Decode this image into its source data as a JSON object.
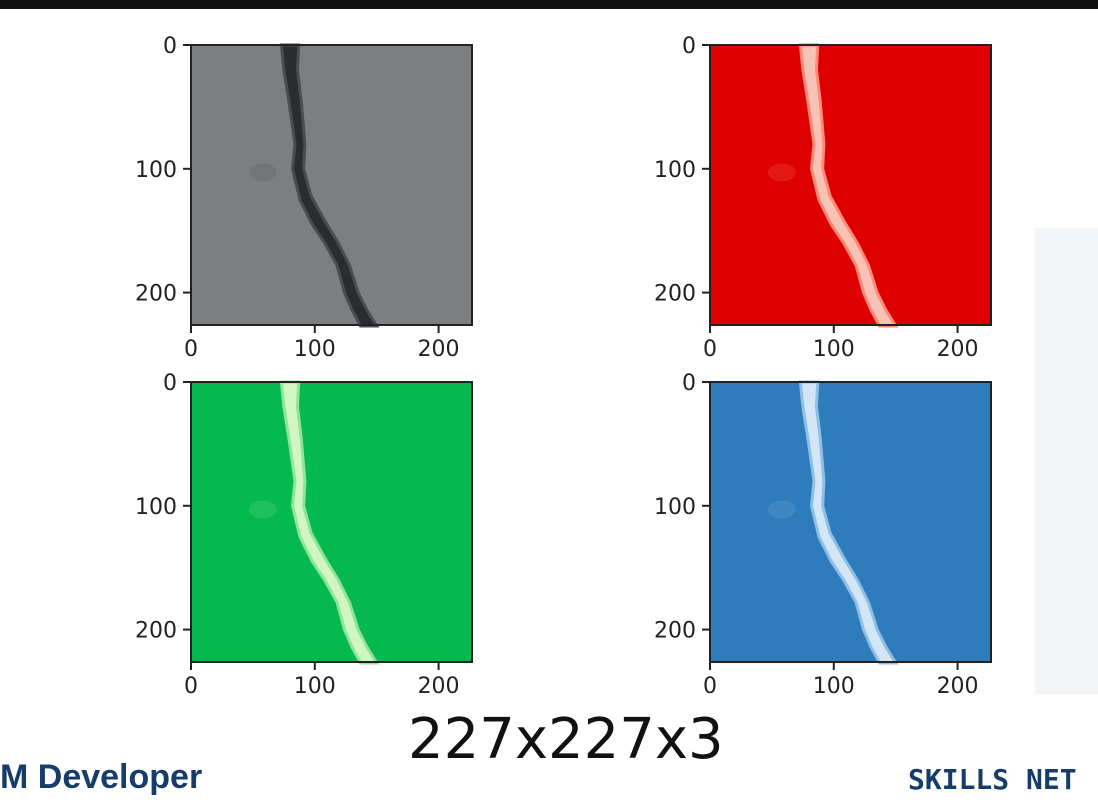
{
  "panels": [
    {
      "id": "gray",
      "fill": "#7d7e80",
      "crack": "#2a2c30",
      "crack_edge": "#4a4c50"
    },
    {
      "id": "red",
      "fill": "#de0000",
      "crack": "#f8c2b6",
      "crack_edge": "#ff8a78"
    },
    {
      "id": "green",
      "fill": "#05b850",
      "crack": "#d2f5c4",
      "crack_edge": "#8ee49a"
    },
    {
      "id": "blue",
      "fill": "#2e7cbc",
      "crack": "#d2e6f5",
      "crack_edge": "#8fbfe6"
    }
  ],
  "axis": {
    "x_ticks": [
      "0",
      "100",
      "200"
    ],
    "y_ticks": [
      "0",
      "100",
      "200"
    ]
  },
  "caption": "227x227x3",
  "footer": {
    "brand": "M Developer",
    "network": "SKILLS NET"
  }
}
